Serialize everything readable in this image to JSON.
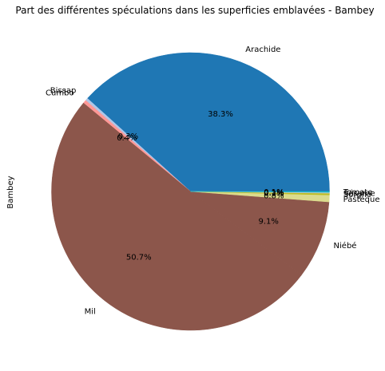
{
  "chart_data": {
    "type": "pie",
    "title": "Part des différentes spéculations dans les superficies emblavées - Bambey",
    "ylabel": "Bambey",
    "start_angle_deg": 0,
    "direction": "counterclockwise",
    "slices": [
      {
        "label": "Arachide",
        "value": 38.3,
        "pct_label": "38.3%",
        "color": "#1f77b4"
      },
      {
        "label": "Bissap",
        "value": 0.3,
        "pct_label": "0.3%",
        "color": "#aec7e8"
      },
      {
        "label": "Cumbo",
        "value": 0.4,
        "pct_label": "0.4%",
        "color": "#ff9896"
      },
      {
        "label": "Mil",
        "value": 50.7,
        "pct_label": "50.7%",
        "color": "#8c564b"
      },
      {
        "label": "Niébé",
        "value": 9.1,
        "pct_label": "9.1%",
        "color": "#8c564b"
      },
      {
        "label": "Pasteque",
        "value": 0.8,
        "pct_label": "0.8%",
        "color": "#dbdb8d"
      },
      {
        "label": "Sorgho",
        "value": 0.2,
        "pct_label": "0.2%",
        "color": "#bcbd22"
      },
      {
        "label": "Sésame",
        "value": 0.1,
        "pct_label": "0.1%",
        "color": "#c7c7c7"
      },
      {
        "label": "Tomate",
        "value": 0.1,
        "pct_label": "0.1%",
        "color": "#17becf"
      }
    ]
  }
}
